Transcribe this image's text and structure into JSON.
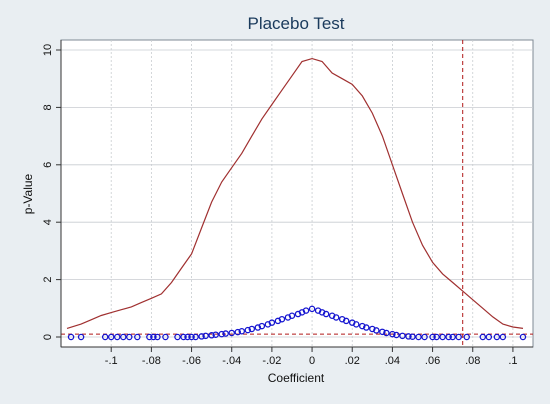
{
  "chart_data": {
    "type": "line",
    "title": "Placebo Test",
    "xlabel": "Coefficient",
    "ylabel": "p-Value",
    "xlim": [
      -0.125,
      0.11
    ],
    "ylim": [
      0,
      10
    ],
    "x_ticks": [
      -0.1,
      -0.08,
      -0.06,
      -0.04,
      -0.02,
      0,
      0.02,
      0.04,
      0.06,
      0.08,
      0.1
    ],
    "x_tick_labels": [
      "-.1",
      "-.08",
      "-.06",
      "-.04",
      "-.02",
      "0",
      ".02",
      ".04",
      ".06",
      ".08",
      ".1"
    ],
    "y_ticks": [
      0,
      2,
      4,
      6,
      8,
      10
    ],
    "y_tick_labels": [
      "0",
      "2",
      "4",
      "6",
      "8",
      "10"
    ],
    "grid": true,
    "reference_lines": {
      "vertical_x": 0.075,
      "horizontal_y": 0.1
    },
    "colors": {
      "density": "#a03030",
      "points": "#1515d0",
      "reference": "#b01818",
      "grid": "#c8ccd0",
      "title": "#1a3a5c"
    },
    "series": [
      {
        "type": "line",
        "x": [
          -0.122,
          -0.115,
          -0.11,
          -0.105,
          -0.1,
          -0.095,
          -0.09,
          -0.085,
          -0.08,
          -0.075,
          -0.07,
          -0.065,
          -0.06,
          -0.055,
          -0.05,
          -0.045,
          -0.04,
          -0.035,
          -0.03,
          -0.025,
          -0.02,
          -0.015,
          -0.01,
          -0.005,
          0,
          0.005,
          0.01,
          0.015,
          0.02,
          0.025,
          0.03,
          0.035,
          0.04,
          0.045,
          0.05,
          0.055,
          0.06,
          0.065,
          0.07,
          0.075,
          0.08,
          0.085,
          0.09,
          0.095,
          0.1,
          0.105
        ],
        "y": [
          0.3,
          0.45,
          0.6,
          0.75,
          0.85,
          0.95,
          1.05,
          1.2,
          1.35,
          1.5,
          1.9,
          2.4,
          2.9,
          3.8,
          4.7,
          5.4,
          5.9,
          6.4,
          7.0,
          7.6,
          8.1,
          8.6,
          9.1,
          9.6,
          9.7,
          9.6,
          9.2,
          9.0,
          8.8,
          8.4,
          7.8,
          7.0,
          6.0,
          5.0,
          4.0,
          3.2,
          2.6,
          2.2,
          1.9,
          1.6,
          1.3,
          1.0,
          0.7,
          0.45,
          0.35,
          0.3
        ]
      },
      {
        "type": "scatter",
        "x": [
          -0.12,
          -0.115,
          -0.103,
          -0.1,
          -0.097,
          -0.094,
          -0.091,
          -0.087,
          -0.081,
          -0.079,
          -0.077,
          -0.073,
          -0.067,
          -0.064,
          -0.062,
          -0.06,
          -0.058,
          -0.055,
          -0.053,
          -0.05,
          -0.048,
          -0.045,
          -0.043,
          -0.04,
          -0.037,
          -0.035,
          -0.032,
          -0.03,
          -0.027,
          -0.025,
          -0.022,
          -0.02,
          -0.017,
          -0.015,
          -0.012,
          -0.01,
          -0.007,
          -0.005,
          -0.003,
          0,
          0.003,
          0.005,
          0.007,
          0.01,
          0.012,
          0.015,
          0.017,
          0.02,
          0.022,
          0.025,
          0.027,
          0.03,
          0.032,
          0.035,
          0.037,
          0.04,
          0.042,
          0.045,
          0.048,
          0.05,
          0.053,
          0.056,
          0.06,
          0.062,
          0.065,
          0.068,
          0.07,
          0.073,
          0.077,
          0.085,
          0.088,
          0.092,
          0.095,
          0.105
        ],
        "y": [
          0.0,
          0.0,
          0.0,
          0.0,
          0.0,
          0.0,
          0.0,
          0.0,
          0.0,
          0.0,
          0.0,
          0.0,
          0.0,
          0.0,
          0.0,
          0.0,
          0.0,
          0.02,
          0.04,
          0.06,
          0.08,
          0.1,
          0.12,
          0.14,
          0.17,
          0.2,
          0.24,
          0.28,
          0.33,
          0.38,
          0.44,
          0.5,
          0.56,
          0.62,
          0.68,
          0.74,
          0.8,
          0.86,
          0.92,
          0.98,
          0.92,
          0.86,
          0.8,
          0.74,
          0.68,
          0.62,
          0.56,
          0.5,
          0.44,
          0.38,
          0.33,
          0.28,
          0.23,
          0.18,
          0.14,
          0.1,
          0.07,
          0.04,
          0.02,
          0.01,
          0.0,
          0.0,
          0.0,
          0.0,
          0.0,
          0.0,
          0.0,
          0.0,
          0.0,
          0.0,
          0.0,
          0.0,
          0.0,
          0.0
        ]
      }
    ]
  }
}
